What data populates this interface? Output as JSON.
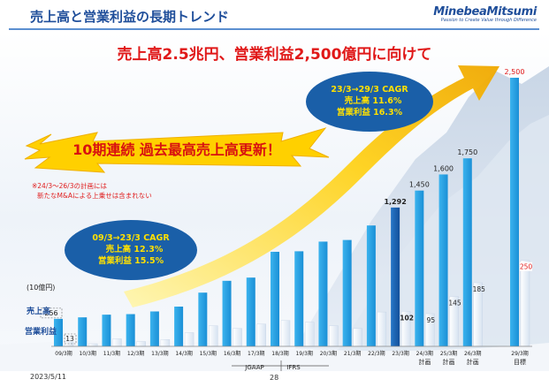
{
  "header": {
    "title": "売上高と営業利益の長期トレンド",
    "logo_name": "MinebeaMitsumi",
    "logo_tagline": "Passion to Create Value through Difference"
  },
  "headline": "売上高2.5兆円、営業利益2,500億円に向けて",
  "banner": "10期連続 過去最高売上高更新！",
  "note": [
    "※24/3～26/3の計画には",
    "新たなM&Aによる上乗せは含まれない"
  ],
  "cagr_past": {
    "title": "09/3→23/3 CAGR",
    "sales": "売上高 12.3%",
    "profit": "営業利益 15.5%"
  },
  "cagr_future": {
    "title": "23/3→29/3 CAGR",
    "sales": "売上高 11.6%",
    "profit": "営業利益 16.3%"
  },
  "accounting": {
    "jgaap": "JGAAP",
    "ifrs": "IFRS"
  },
  "footer": {
    "date": "2023/5/11",
    "page": "28"
  },
  "colors": {
    "sales": "#1f9de0",
    "sales_2023": "#1565b8",
    "profit": "#ffffff",
    "headline": "#e01818",
    "banner_fill": "#ffd000",
    "cagr_fill": "#1a5fa8",
    "cagr_text": "#ffe000"
  },
  "chart_data": {
    "type": "bar",
    "unit_label": "(10億円)",
    "legend": {
      "sales": "売上高",
      "profit": "営業利益"
    },
    "categories": [
      "09/3期",
      "10/3期",
      "11/3期",
      "12/3期",
      "13/3期",
      "14/3期",
      "15/3期",
      "16/3期",
      "17/3期",
      "18/3期",
      "19/3期",
      "20/3期",
      "21/3期",
      "22/3期",
      "23/3期",
      "24/3期",
      "25/3期",
      "26/3期",
      "29/3期"
    ],
    "sublabels": {
      "24/3期": "計画",
      "25/3期": "計画",
      "26/3期": "計画",
      "29/3期": "目標"
    },
    "series": [
      {
        "name": "売上高",
        "values": [
          256,
          270,
          295,
          300,
          325,
          370,
          500,
          610,
          640,
          880,
          885,
          975,
          990,
          1125,
          1292,
          1450,
          1600,
          1750,
          2500
        ],
        "labels": {
          "0": "256",
          "14": "1,292",
          "15": "1,450",
          "16": "1,600",
          "17": "1,750",
          "18": "2,500"
        }
      },
      {
        "name": "営業利益",
        "values": [
          13,
          5,
          22,
          14,
          20,
          40,
          60,
          52,
          65,
          75,
          70,
          60,
          52,
          100,
          102,
          95,
          145,
          185,
          250
        ],
        "labels": {
          "0": "13",
          "14": "102",
          "15": "95",
          "16": "145",
          "17": "185",
          "18": "250"
        }
      }
    ]
  }
}
